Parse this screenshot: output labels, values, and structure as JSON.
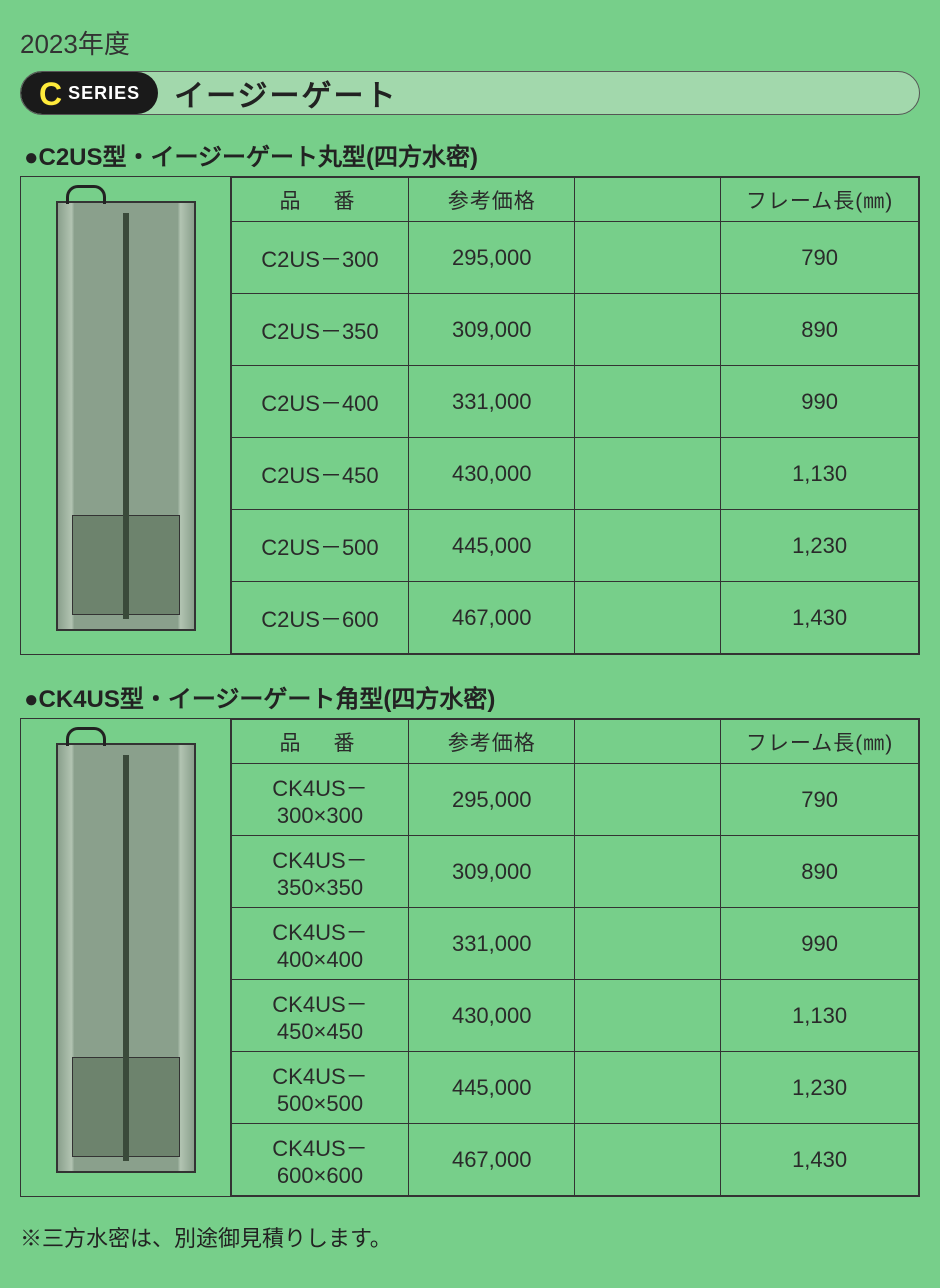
{
  "year_label": "2023年度",
  "badge": {
    "letter": "C",
    "series": "SERIES"
  },
  "main_title": "イージーゲート",
  "sections": [
    {
      "title": "●C2US型・イージーゲート丸型(四方水密)",
      "headers": {
        "part": "品　番",
        "price": "参考価格",
        "frame": "フレーム長(㎜)"
      },
      "rows": [
        {
          "part": "C2US－300",
          "price": "295,000",
          "frame": "790"
        },
        {
          "part": "C2US－350",
          "price": "309,000",
          "frame": "890"
        },
        {
          "part": "C2US－400",
          "price": "331,000",
          "frame": "990"
        },
        {
          "part": "C2US－450",
          "price": "430,000",
          "frame": "1,130"
        },
        {
          "part": "C2US－500",
          "price": "445,000",
          "frame": "1,230"
        },
        {
          "part": "C2US－600",
          "price": "467,000",
          "frame": "1,430"
        }
      ]
    },
    {
      "title": "●CK4US型・イージーゲート角型(四方水密)",
      "headers": {
        "part": "品　番",
        "price": "参考価格",
        "frame": "フレーム長(㎜)"
      },
      "rows": [
        {
          "part": "CK4US－300×300",
          "price": "295,000",
          "frame": "790"
        },
        {
          "part": "CK4US－350×350",
          "price": "309,000",
          "frame": "890"
        },
        {
          "part": "CK4US－400×400",
          "price": "331,000",
          "frame": "990"
        },
        {
          "part": "CK4US－450×450",
          "price": "430,000",
          "frame": "1,130"
        },
        {
          "part": "CK4US－500×500",
          "price": "445,000",
          "frame": "1,230"
        },
        {
          "part": "CK4US－600×600",
          "price": "467,000",
          "frame": "1,430"
        }
      ]
    }
  ],
  "footnote": "※三方水密は、別途御見積りします。",
  "colors": {
    "page_bg": "#77cf8a",
    "header_bg": "#a2d8ac",
    "badge_bg": "#1a1a1a",
    "badge_letter": "#ffeb3b",
    "border": "#333333"
  }
}
